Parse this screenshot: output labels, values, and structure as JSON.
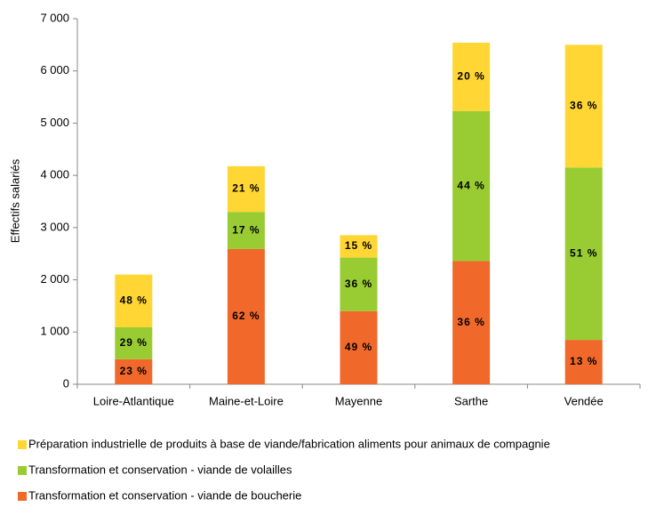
{
  "chart_data": {
    "type": "stacked-bar",
    "y_label": "Effectifs salariés",
    "categories": [
      "Loire-Atlantique",
      "Maine-et-Loire",
      "Mayenne",
      "Sarthe",
      "Vendée"
    ],
    "series": [
      {
        "name": "Transformation et conservation - viande de boucherie",
        "color": "#f0692a",
        "values": [
          480,
          2590,
          1400,
          2360,
          850
        ],
        "segment_labels": [
          "23 %",
          "62 %",
          "49 %",
          "36 %",
          "13 %"
        ]
      },
      {
        "name": "Transformation et conservation - viande de volailles",
        "color": "#99cc33",
        "values": [
          610,
          710,
          1025,
          2870,
          3300
        ],
        "segment_labels": [
          "29 %",
          "17 %",
          "36 %",
          "44 %",
          "51 %"
        ]
      },
      {
        "name": "Préparation industrielle de produits à base de viande/fabrication aliments pour animaux de compagnie",
        "color": "#ffd633",
        "values": [
          1010,
          875,
          430,
          1310,
          2350
        ],
        "segment_labels": [
          "48 %",
          "21 %",
          "15 %",
          "20 %",
          "36 %"
        ]
      }
    ],
    "ylim": [
      0,
      7000
    ],
    "yticks": [
      0,
      {
        "value": 1000,
        "label": "1 000"
      },
      {
        "value": 2000,
        "label": "2 000"
      },
      {
        "value": 3000,
        "label": "3 000"
      },
      {
        "value": 4000,
        "label": "4 000"
      },
      {
        "value": 5000,
        "label": "5 000"
      },
      {
        "value": 6000,
        "label": "6 000"
      },
      {
        "value": 7000,
        "label": "7 000"
      }
    ],
    "grid": false
  }
}
